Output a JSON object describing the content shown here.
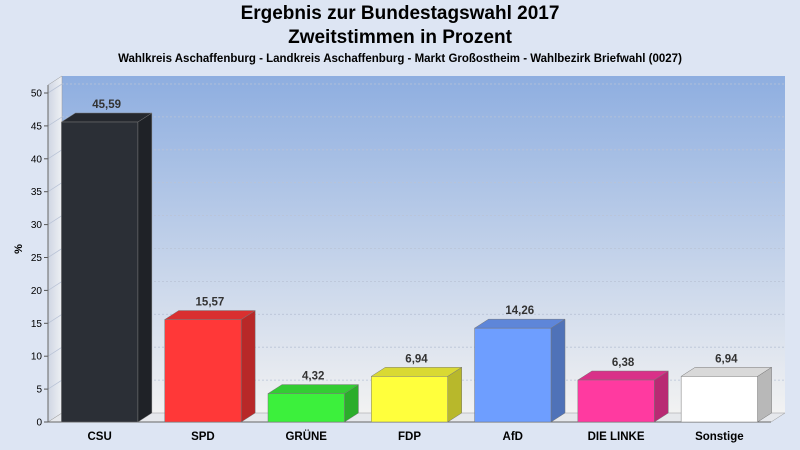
{
  "chart_data": {
    "type": "bar",
    "title": "Ergebnis zur Bundestagswahl 2017",
    "subtitle": "Zweitstimmen in Prozent",
    "caption": "Wahlkreis Aschaffenburg - Landkreis Aschaffenburg - Markt Großostheim - Wahlbezirk Briefwahl (0027)",
    "xlabel": "",
    "ylabel": "%",
    "ylim": [
      0,
      50
    ],
    "yticks": [
      0,
      5,
      10,
      15,
      20,
      25,
      30,
      35,
      40,
      45,
      50
    ],
    "grid": true,
    "categories": [
      "CSU",
      "SPD",
      "GRÜNE",
      "FDP",
      "AfD",
      "DIE LINKE",
      "Sonstige"
    ],
    "values": [
      45.59,
      15.57,
      4.32,
      6.94,
      14.26,
      6.38,
      6.94
    ],
    "value_labels": [
      "45,59",
      "15,57",
      "4,32",
      "6,94",
      "14,26",
      "6,38",
      "6,94"
    ],
    "colors": [
      "#2b2f36",
      "#ff3838",
      "#3cf03c",
      "#ffff3c",
      "#6e9eff",
      "#ff3aa0",
      "#ffffff"
    ]
  }
}
